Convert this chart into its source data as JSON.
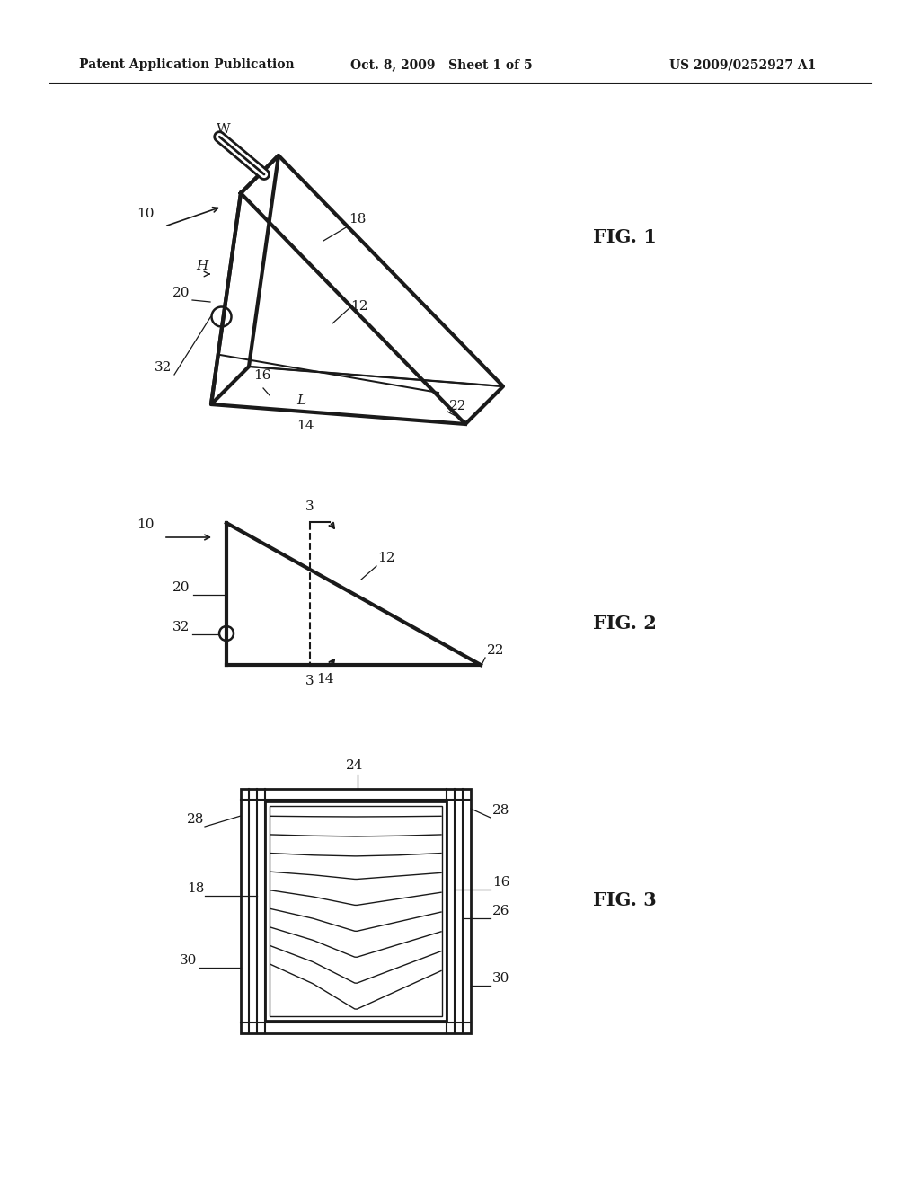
{
  "bg_color": "#ffffff",
  "header_left": "Patent Application Publication",
  "header_mid": "Oct. 8, 2009   Sheet 1 of 5",
  "header_right": "US 2009/0252927 A1",
  "fig1_label": "FIG. 1",
  "fig2_label": "FIG. 2",
  "fig3_label": "FIG. 3",
  "line_color": "#1a1a1a",
  "lw": 1.8,
  "tlw": 3.0,
  "fs": 11,
  "hfs": 10
}
